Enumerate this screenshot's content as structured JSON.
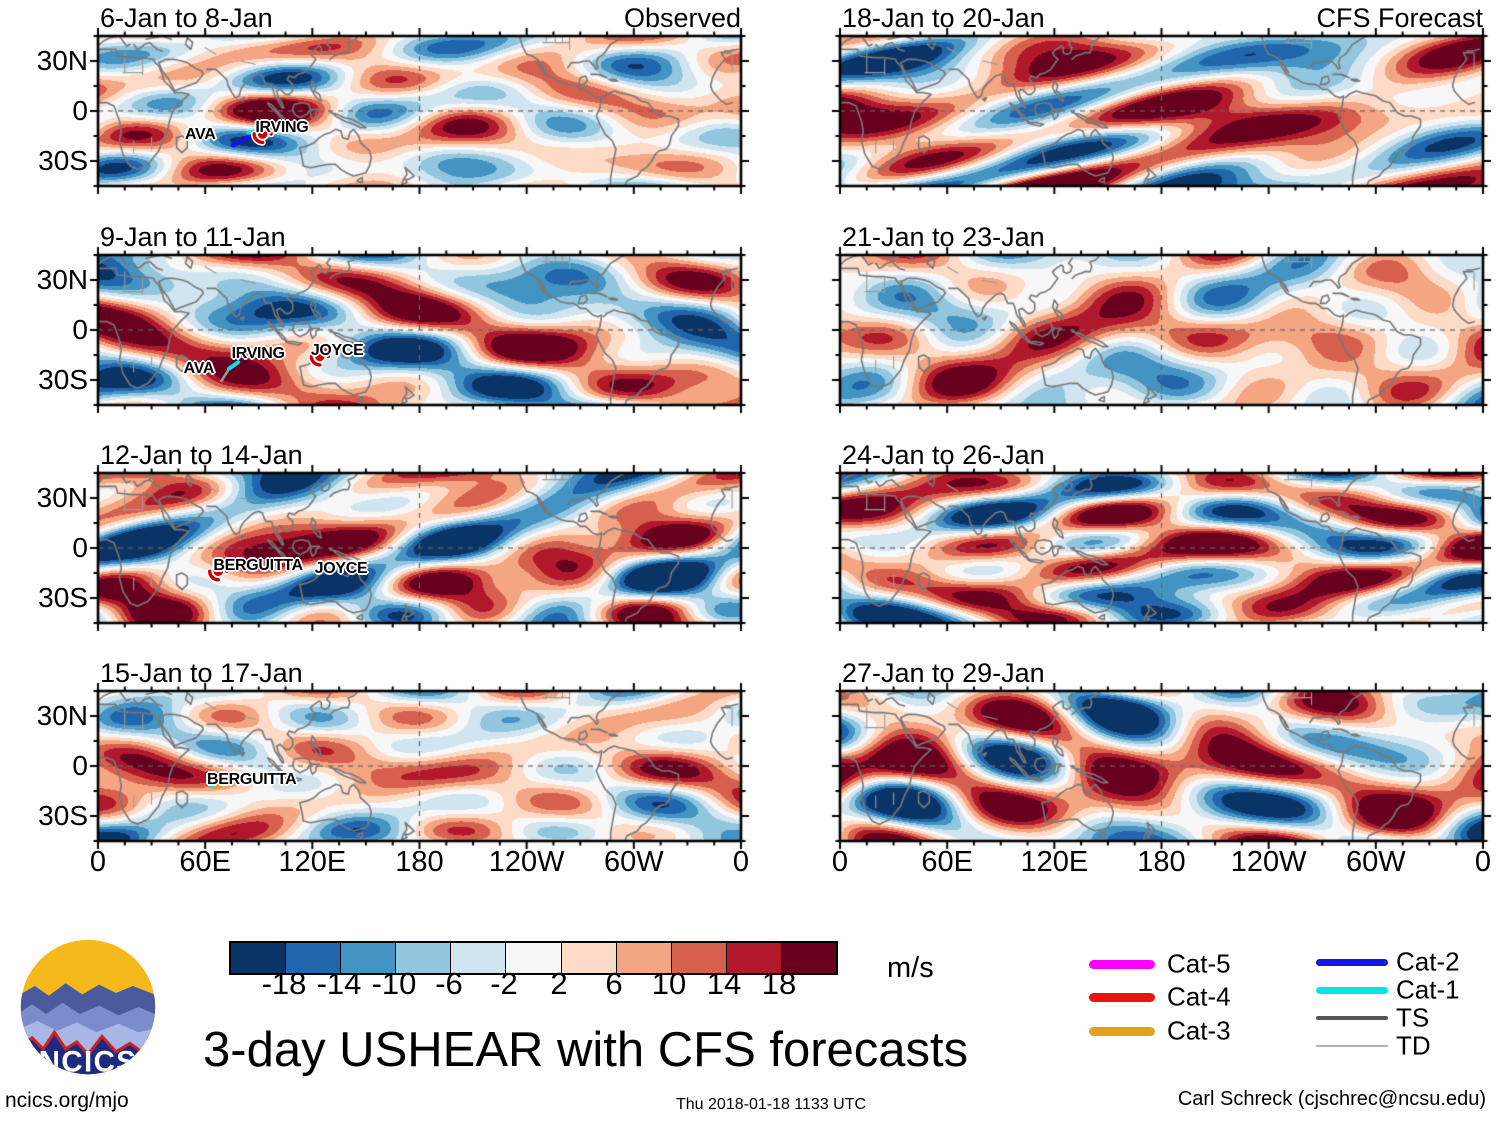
{
  "chart_data": {
    "type": "heatmap",
    "title": "3-day USHEAR with CFS forecasts",
    "units": "m/s",
    "columns": [
      "Observed",
      "CFS Forecast"
    ],
    "x_axis": {
      "tick_labels": [
        "0",
        "60E",
        "120E",
        "180",
        "120W",
        "60W",
        "0"
      ],
      "range_deg": [
        0,
        360
      ]
    },
    "y_axis": {
      "tick_labels": [
        "30N",
        "0",
        "30S"
      ],
      "range_deg": [
        45,
        -45
      ]
    },
    "colorbar": {
      "tick_labels": [
        "-18",
        "-14",
        "-10",
        "-6",
        "-2",
        "2",
        "6",
        "10",
        "14",
        "18"
      ],
      "colors": [
        "#0b3466",
        "#2166ac",
        "#4393c3",
        "#92c5de",
        "#d1e5f0",
        "#f7f7f7",
        "#fddbc7",
        "#f4a582",
        "#d6604d",
        "#b2182b",
        "#67001f"
      ],
      "units_label": "m/s"
    },
    "legend": [
      {
        "label": "Cat-5",
        "color": "#ff00ff",
        "thickness": 9
      },
      {
        "label": "Cat-4",
        "color": "#ee1111",
        "thickness": 9
      },
      {
        "label": "Cat-3",
        "color": "#e5a11c",
        "thickness": 9
      },
      {
        "label": "Cat-2",
        "color": "#1616e0",
        "thickness": 7
      },
      {
        "label": "Cat-1",
        "color": "#00e5e5",
        "thickness": 7
      },
      {
        "label": "TS",
        "color": "#555555",
        "thickness": 3.5
      },
      {
        "label": "TD",
        "color": "#b0b0b0",
        "thickness": 2
      }
    ],
    "panels": [
      {
        "title": "6-Jan to 8-Jan",
        "column": "Observed",
        "corner_label": "Observed",
        "storms": [
          {
            "name": "AVA",
            "label_pos": [
              15.9,
              66
            ],
            "track": [
              {
                "color": "#1616e0",
                "width": 5,
                "points": [
                  [
                    21.0,
                    72.7
                  ],
                  [
                    23.8,
                    66.7
                  ]
                ]
              },
              {
                "color": "#00e5e5",
                "width": 4,
                "points": [
                  [
                    23.4,
                    64.5
                  ],
                  [
                    24.6,
                    63.2
                  ]
                ]
              }
            ]
          },
          {
            "name": "IRVING",
            "label_pos": [
              28.6,
              61.5
            ],
            "symbol": {
              "pos": [
                25.6,
                65.3
              ],
              "color": "#cc0000"
            }
          }
        ]
      },
      {
        "title": "9-Jan to 11-Jan",
        "column": "Observed",
        "storms": [
          {
            "name": "AVA",
            "label_pos": [
              15.7,
              75.7
            ],
            "track": [
              {
                "color": "#9a9a9a",
                "width": 2.5,
                "points": [
                  [
                    19.2,
                    84.0
                  ],
                  [
                    20.4,
                    75.7
                  ]
                ]
              },
              {
                "color": "#00e5e5",
                "width": 4,
                "points": [
                  [
                    20.4,
                    75.7
                  ],
                  [
                    21.8,
                    71.5
                  ]
                ]
              }
            ]
          },
          {
            "name": "IRVING",
            "label_pos": [
              24.9,
              66.2
            ]
          },
          {
            "name": "JOYCE",
            "label_pos": [
              37.2,
              64.2
            ],
            "symbol": {
              "pos": [
                34.5,
                67.6
              ],
              "color": "#cc0000"
            }
          }
        ]
      },
      {
        "title": "12-Jan to 14-Jan",
        "column": "Observed",
        "storms": [
          {
            "name": "BERGUITTA",
            "label_pos": [
              24.9,
              62.0
            ],
            "symbol": {
              "pos": [
                18.7,
                65.5
              ],
              "color": "#cc0000"
            }
          },
          {
            "name": "JOYCE",
            "label_pos": [
              37.8,
              64.2
            ]
          }
        ]
      },
      {
        "title": "15-Jan to 17-Jan",
        "column": "Observed",
        "storms": [
          {
            "name": "BERGUITTA",
            "label_pos": [
              23.9,
              59.3
            ],
            "track": [
              {
                "color": "#00e5e5",
                "width": 3,
                "points": [
                  [
                    17.4,
                    63.5
                  ],
                  [
                    18.2,
                    64.2
                  ]
                ]
              },
              {
                "color": "#e5a11c",
                "width": 3,
                "points": [
                  [
                    18.2,
                    64.2
                  ],
                  [
                    19.1,
                    63.8
                  ]
                ]
              }
            ]
          }
        ]
      },
      {
        "title": "18-Jan to 20-Jan",
        "column": "CFS Forecast",
        "corner_label": "CFS Forecast",
        "storms": []
      },
      {
        "title": "21-Jan to 23-Jan",
        "column": "CFS Forecast",
        "storms": []
      },
      {
        "title": "24-Jan to 26-Jan",
        "column": "CFS Forecast",
        "storms": []
      },
      {
        "title": "27-Jan to 29-Jan",
        "column": "CFS Forecast",
        "storms": []
      }
    ]
  },
  "logo": {
    "text": "NCICS"
  },
  "footer": {
    "site": "ncics.org/mjo",
    "timestamp": "Thu 2018-01-18 1133 UTC",
    "credit": "Carl Schreck (cjschrec@ncsu.edu)"
  }
}
